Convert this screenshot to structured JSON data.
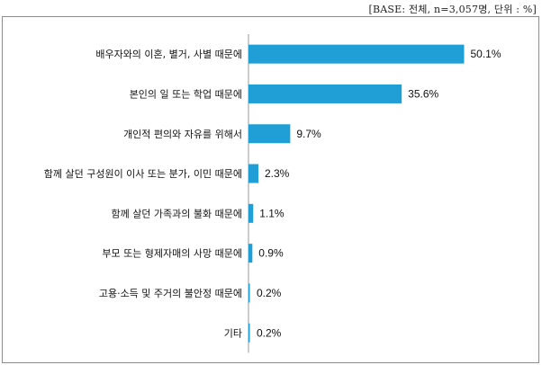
{
  "base_note": "[BASE: 전체, n=3,057명, 단위 : %]",
  "colors": {
    "bar": "#1f9fd6",
    "axis": "#9a9a9a"
  },
  "chart_data": {
    "type": "bar",
    "orientation": "horizontal",
    "categories": [
      "배우자와의 이혼, 별거, 사별 때문에",
      "본인의 일 또는 학업 때문에",
      "개인적 편의와 자유를 위해서",
      "함께 살던 구성원이 이사 또는 분가, 이민 때문에",
      "함께 살던 가족과의 불화 때문에",
      "부모 또는 형제자매의 사망 때문에",
      "고용·소득 및 주거의 불안정 때문에",
      "기타"
    ],
    "values": [
      50.1,
      35.6,
      9.7,
      2.3,
      1.1,
      0.9,
      0.2,
      0.2
    ],
    "value_labels": [
      "50.1%",
      "35.6%",
      "9.7%",
      "2.3%",
      "1.1%",
      "0.9%",
      "0.2%",
      "0.2%"
    ],
    "xlim": [
      0,
      60
    ],
    "grid": false,
    "legend": "none"
  }
}
